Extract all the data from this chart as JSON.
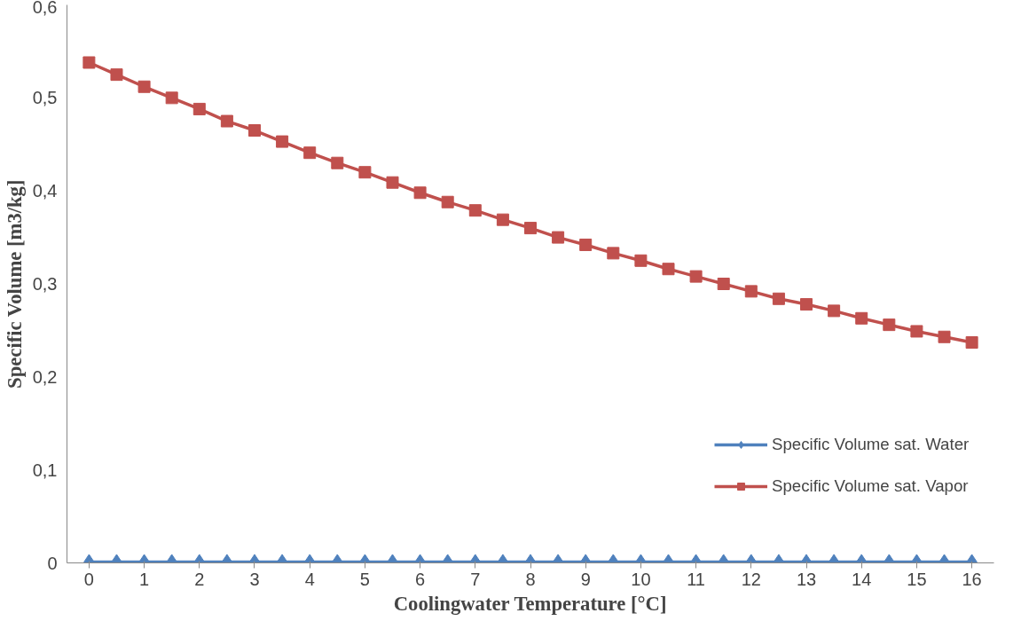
{
  "chart_data": {
    "type": "line",
    "xlabel": "Coolingwater Temperature [°C]",
    "ylabel": "Specific Volume [m3/kg]",
    "x": [
      0,
      0.5,
      1,
      1.5,
      2,
      2.5,
      3,
      3.5,
      4,
      4.5,
      5,
      5.5,
      6,
      6.5,
      7,
      7.5,
      8,
      8.5,
      9,
      9.5,
      10,
      10.5,
      11,
      11.5,
      12,
      12.5,
      13,
      13.5,
      14,
      14.5,
      15,
      15.5,
      16
    ],
    "series": [
      {
        "name": "Specific Volume sat. Water",
        "color": "#4f81bd",
        "marker": "diamond",
        "values": [
          0.001,
          0.001,
          0.001,
          0.001,
          0.001,
          0.001,
          0.001,
          0.001,
          0.001,
          0.001,
          0.001,
          0.001,
          0.001,
          0.001,
          0.001,
          0.001,
          0.001,
          0.001,
          0.001,
          0.001,
          0.001,
          0.001,
          0.001,
          0.001,
          0.001,
          0.001,
          0.001,
          0.001,
          0.001,
          0.001,
          0.001,
          0.001,
          0.001
        ]
      },
      {
        "name": "Specific Volume sat. Vapor",
        "color": "#c0504d",
        "marker": "square",
        "values": [
          0.538,
          0.525,
          0.512,
          0.5,
          0.488,
          0.475,
          0.465,
          0.453,
          0.441,
          0.43,
          0.42,
          0.409,
          0.398,
          0.388,
          0.379,
          0.369,
          0.36,
          0.35,
          0.342,
          0.333,
          0.325,
          0.316,
          0.308,
          0.3,
          0.292,
          0.284,
          0.278,
          0.271,
          0.263,
          0.256,
          0.249,
          0.243,
          0.237
        ]
      }
    ],
    "xlim": [
      -0.4,
      16.4
    ],
    "xticks": [
      0,
      1,
      2,
      3,
      4,
      5,
      6,
      7,
      8,
      9,
      10,
      11,
      12,
      13,
      14,
      15,
      16
    ],
    "ylim": [
      0,
      0.6
    ],
    "yticks": [
      {
        "value": 0,
        "label": "0"
      },
      {
        "value": 0.1,
        "label": "0,1"
      },
      {
        "value": 0.2,
        "label": "0,2"
      },
      {
        "value": 0.3,
        "label": "0,3"
      },
      {
        "value": 0.4,
        "label": "0,4"
      },
      {
        "value": 0.5,
        "label": "0,5"
      },
      {
        "value": 0.6,
        "label": "0,6"
      }
    ],
    "grid": false,
    "legend": "right",
    "line_style": "solid"
  }
}
